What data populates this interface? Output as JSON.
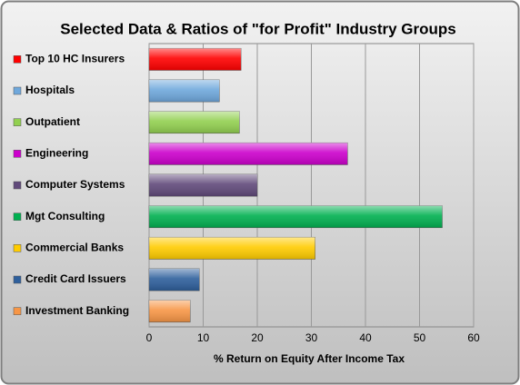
{
  "chart_data": {
    "type": "barh",
    "title": "Selected Data & Ratios of \"for Profit\" Industry Groups",
    "x_label": "% Return on Equity After Income Tax",
    "categories": [
      "Top 10 HC Insurers",
      "Hospitals",
      "Outpatient",
      "Engineering",
      "Computer Systems",
      "Mgt Consulting",
      "Commercial Banks",
      "Credit Card Issuers",
      "Investment Banking"
    ],
    "values": [
      17,
      13,
      16.7,
      36.7,
      20,
      54.2,
      30.7,
      9.3,
      7.6
    ],
    "colors": [
      "#ff0000",
      "#6fa8dc",
      "#92d050",
      "#cc00cc",
      "#60497a",
      "#00b050",
      "#ffcc00",
      "#2e5f9c",
      "#f79646"
    ],
    "xlim": [
      0,
      60
    ],
    "xticks": [
      0,
      10,
      20,
      30,
      40,
      50,
      60
    ],
    "grid": true
  }
}
